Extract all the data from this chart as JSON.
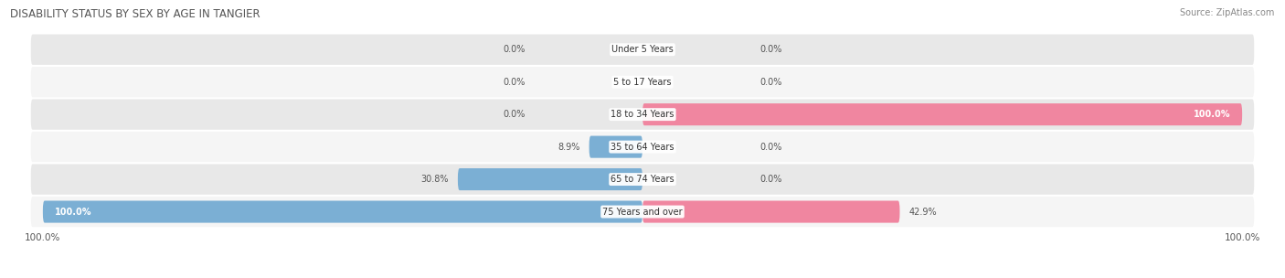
{
  "title": "DISABILITY STATUS BY SEX BY AGE IN TANGIER",
  "source": "Source: ZipAtlas.com",
  "categories": [
    "Under 5 Years",
    "5 to 17 Years",
    "18 to 34 Years",
    "35 to 64 Years",
    "65 to 74 Years",
    "75 Years and over"
  ],
  "male_values": [
    0.0,
    0.0,
    0.0,
    8.9,
    30.8,
    100.0
  ],
  "female_values": [
    0.0,
    0.0,
    100.0,
    0.0,
    0.0,
    42.9
  ],
  "male_color": "#7bafd4",
  "female_color": "#f086a0",
  "row_bg_color": "#e8e8e8",
  "row_bg_alt": "#f5f5f5",
  "label_color": "#555555",
  "max_value": 100.0,
  "figsize": [
    14.06,
    3.04
  ],
  "dpi": 100
}
